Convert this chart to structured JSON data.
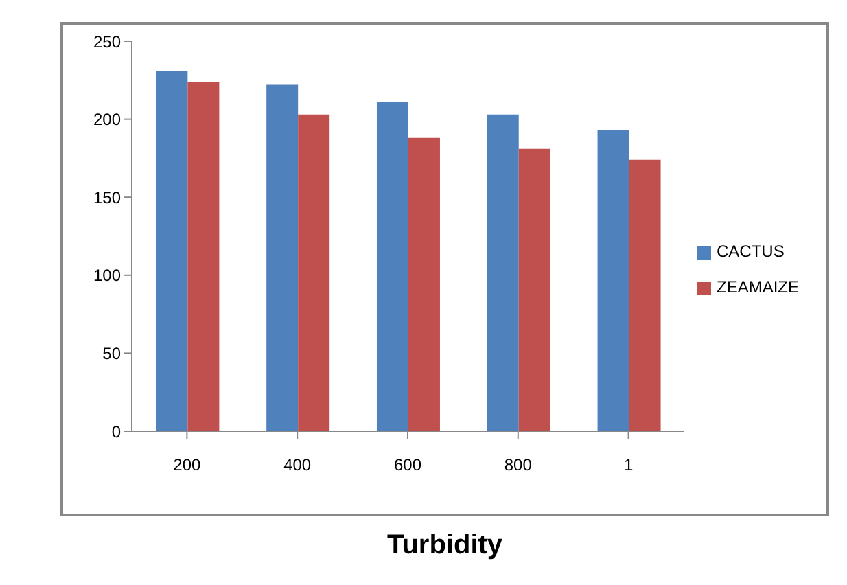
{
  "chart_data": {
    "type": "bar",
    "xlabel": "Turbidity",
    "categories": [
      "200",
      "400",
      "600",
      "800",
      "1"
    ],
    "series": [
      {
        "name": "CACTUS",
        "color": "#4f81bd",
        "values": [
          231,
          222,
          211,
          203,
          193
        ]
      },
      {
        "name": "ZEAMAIZE",
        "color": "#c0504d",
        "values": [
          224,
          203,
          188,
          181,
          174
        ]
      }
    ],
    "ylim": [
      0,
      250
    ],
    "yticks": [
      0,
      50,
      100,
      150,
      200,
      250
    ],
    "grid": false,
    "legend": "right"
  }
}
